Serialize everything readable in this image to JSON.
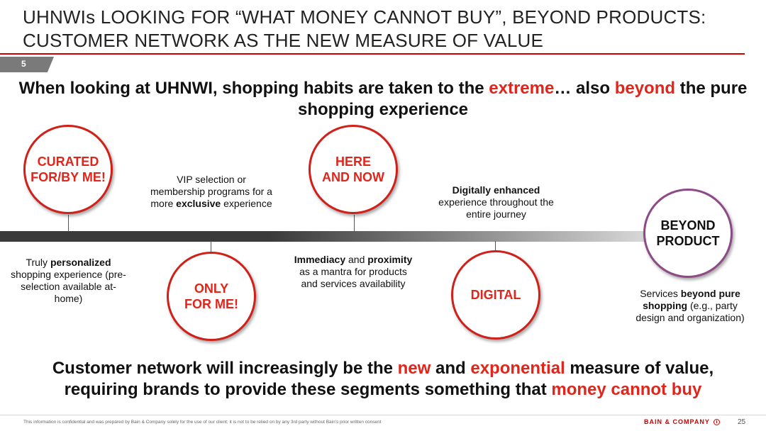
{
  "title": {
    "line1": "UHNWIs LOOKING FOR “WHAT MONEY CANNOT BUY”, BEYOND PRODUCTS:",
    "line2": "CUSTOMER NETWORK AS THE NEW MEASURE OF VALUE"
  },
  "section_number": "5",
  "headline": {
    "part1": "When looking at UHNWI, shopping habits are taken to the ",
    "red1": "extreme",
    "part2": "… also ",
    "red2": "beyond",
    "part3": " the pure shopping experience"
  },
  "stages": {
    "curated": {
      "line1": "CURATED",
      "line2": "FOR/BY ME!",
      "desc_pre": "Truly ",
      "desc_bold": "personalized",
      "desc_post": " shopping experience (pre-selection available at-home)"
    },
    "only": {
      "line1": "ONLY",
      "line2": "FOR ME!",
      "desc_pre": "VIP selection or membership programs for a more ",
      "desc_bold": "exclusive",
      "desc_post": " experience"
    },
    "here": {
      "line1": "HERE",
      "line2": "AND NOW",
      "desc_bold1": "Immediacy",
      "desc_mid": " and ",
      "desc_bold2": "proximity",
      "desc_post": " as a mantra for products and services availability"
    },
    "digital": {
      "line1": "DIGITAL",
      "desc_bold": "Digitally enhanced",
      "desc_post": " experience throughout the entire journey"
    },
    "beyond": {
      "line1": "BEYOND",
      "line2": "PRODUCT",
      "desc_pre": "Services ",
      "desc_bold": "beyond pure shopping",
      "desc_post": " (e.g., party design and organization)"
    }
  },
  "bottom": {
    "part1": "Customer network will increasingly be the ",
    "red1": "new",
    "part2": " and ",
    "red2": "exponential",
    "part3": " measure of value, requiring brands to provide these segments something that ",
    "red3": "money cannot buy"
  },
  "footer": {
    "disclaimer": "This information is confidential and was prepared by Bain & Company solely for the use of our client; it is not to be relied on by any 3rd party without Bain's prior written consent",
    "brand": "BAIN & COMPANY",
    "page": "25"
  },
  "colors": {
    "accent_red": "#e1251b",
    "circle_border_red": "#d0201a",
    "circle_border_purple": "#8e4a86",
    "bar_dark": "#3a3a3a"
  },
  "icons": [
    "bain-logo-icon"
  ]
}
